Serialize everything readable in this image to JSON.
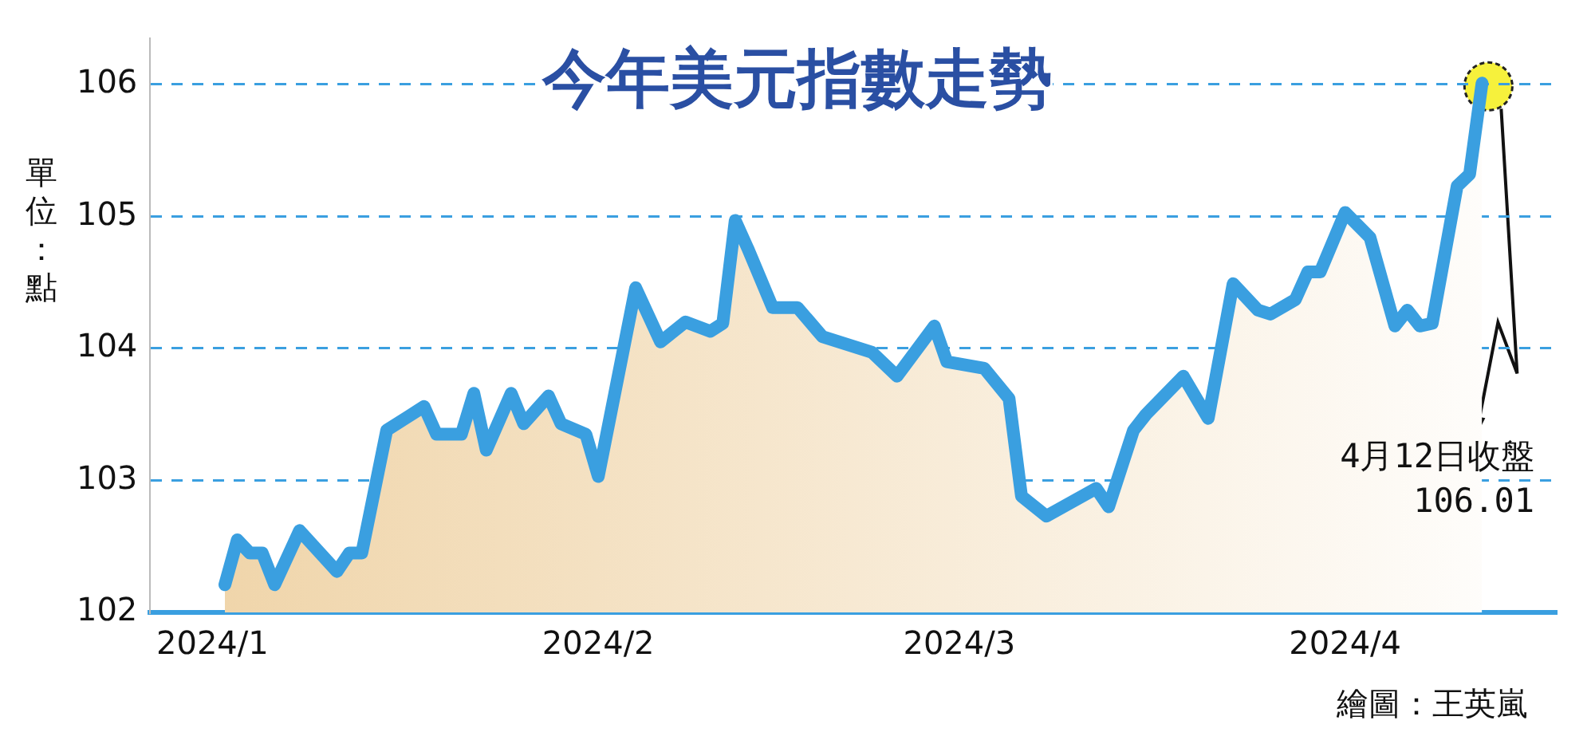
{
  "chart_data": {
    "type": "area",
    "title": "今年美元指數走勢",
    "ylabel": "單位：點",
    "x": [
      "2024-01-02",
      "2024-01-03",
      "2024-01-04",
      "2024-01-05",
      "2024-01-06",
      "2024-01-08",
      "2024-01-11",
      "2024-01-12",
      "2024-01-13",
      "2024-01-15",
      "2024-01-18",
      "2024-01-19",
      "2024-01-21",
      "2024-01-22",
      "2024-01-23",
      "2024-01-25",
      "2024-01-26",
      "2024-01-28",
      "2024-01-29",
      "2024-01-31",
      "2024-02-01",
      "2024-02-04",
      "2024-02-06",
      "2024-02-08",
      "2024-02-10",
      "2024-02-11",
      "2024-02-12",
      "2024-02-13",
      "2024-02-15",
      "2024-02-17",
      "2024-02-19",
      "2024-02-23",
      "2024-02-25",
      "2024-02-28",
      "2024-02-29",
      "2024-03-03",
      "2024-03-05",
      "2024-03-06",
      "2024-03-08",
      "2024-03-12",
      "2024-03-13",
      "2024-03-15",
      "2024-03-16",
      "2024-03-19",
      "2024-03-21",
      "2024-03-23",
      "2024-03-25",
      "2024-03-26",
      "2024-03-28",
      "2024-03-29",
      "2024-03-30",
      "2024-04-01",
      "2024-04-03",
      "2024-04-05",
      "2024-04-06",
      "2024-04-07",
      "2024-04-08",
      "2024-04-10",
      "2024-04-11",
      "2024-04-12"
    ],
    "series": [
      {
        "color": "#3a9fe0",
        "values": [
          102.21,
          102.55,
          102.45,
          102.45,
          102.21,
          102.62,
          102.31,
          102.45,
          102.45,
          103.38,
          103.56,
          103.35,
          103.35,
          103.66,
          103.23,
          103.66,
          103.43,
          103.64,
          103.43,
          103.35,
          103.03,
          104.46,
          104.05,
          104.2,
          104.13,
          104.19,
          104.97,
          104.76,
          104.31,
          104.31,
          104.09,
          103.97,
          103.79,
          104.17,
          103.9,
          103.85,
          103.62,
          102.88,
          102.73,
          102.94,
          102.8,
          103.38,
          103.5,
          103.79,
          103.47,
          104.49,
          104.29,
          104.26,
          104.37,
          104.58,
          104.58,
          105.03,
          104.84,
          104.17,
          104.29,
          104.17,
          104.19,
          105.23,
          105.32,
          106.01
        ]
      }
    ],
    "xlim": [
      "2023-12-27",
      "2024-04-18"
    ],
    "xticks": [
      {
        "value": "2024-01-01",
        "label": "2024/1"
      },
      {
        "value": "2024-02-01",
        "label": "2024/2"
      },
      {
        "value": "2024-03-01",
        "label": "2024/3"
      },
      {
        "value": "2024-04-01",
        "label": "2024/4"
      }
    ],
    "ylim": [
      102,
      106.35
    ],
    "yticks": [
      102,
      103,
      104,
      105,
      106
    ],
    "grid": "y",
    "legend": false,
    "marker": "none",
    "line_style": "solid",
    "annotations": [
      "4月12日收盤\n106.01",
      "繪圖：王英嵐"
    ]
  }
}
